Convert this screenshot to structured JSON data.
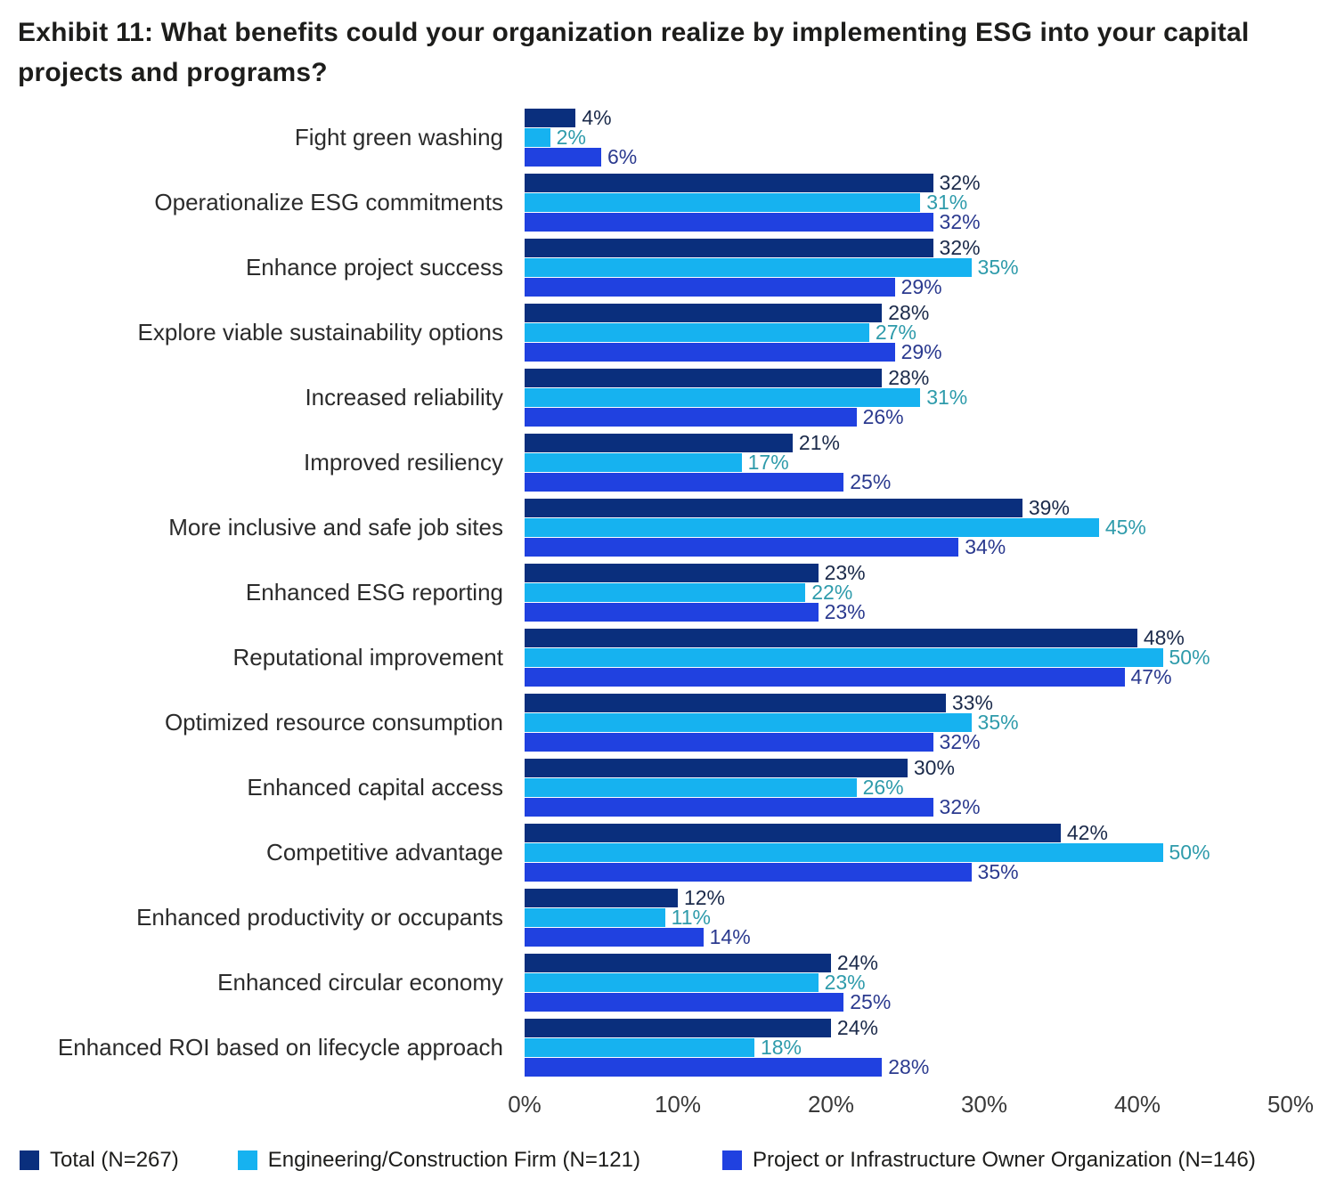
{
  "title": "Exhibit 11: What benefits could your organization realize by implementing ESG into your capital projects and programs?",
  "chart_data": {
    "type": "bar",
    "orientation": "horizontal",
    "title": "Exhibit 11: What benefits could your organization realize by implementing ESG into your capital projects and programs?",
    "categories": [
      "Fight green washing",
      "Operationalize ESG commitments",
      "Enhance project success",
      "Explore viable sustainability options",
      "Increased reliability",
      "Improved resiliency",
      "More inclusive and safe job sites",
      "Enhanced ESG reporting",
      "Reputational improvement",
      "Optimized resource consumption",
      "Enhanced capital access",
      "Competitive advantage",
      "Enhanced productivity or occupants",
      "Enhanced circular economy",
      "Enhanced ROI based on lifecycle approach"
    ],
    "series": [
      {
        "name": "Total (N=267)",
        "color": "#0a2f7d",
        "label_color": "#1b2a4a",
        "values": [
          4,
          32,
          32,
          28,
          28,
          21,
          39,
          23,
          48,
          33,
          30,
          42,
          12,
          24,
          24
        ]
      },
      {
        "name": "Engineering/Construction Firm (N=121)",
        "color": "#16b2f0",
        "label_color": "#2e9bab",
        "values": [
          2,
          31,
          35,
          27,
          31,
          17,
          45,
          22,
          50,
          35,
          26,
          50,
          11,
          23,
          18
        ]
      },
      {
        "name": "Project or Infrastructure Owner Organization (N=146)",
        "color": "#2041e0",
        "label_color": "#2b3a8f",
        "values": [
          6,
          32,
          29,
          29,
          26,
          25,
          34,
          23,
          47,
          32,
          32,
          35,
          14,
          25,
          28
        ]
      }
    ],
    "xticks": [
      "0%",
      "10%",
      "20%",
      "30%",
      "40%",
      "50%"
    ],
    "xlim": [
      0,
      50
    ],
    "value_suffix": "%",
    "legend_position": "bottom",
    "grid": false
  }
}
